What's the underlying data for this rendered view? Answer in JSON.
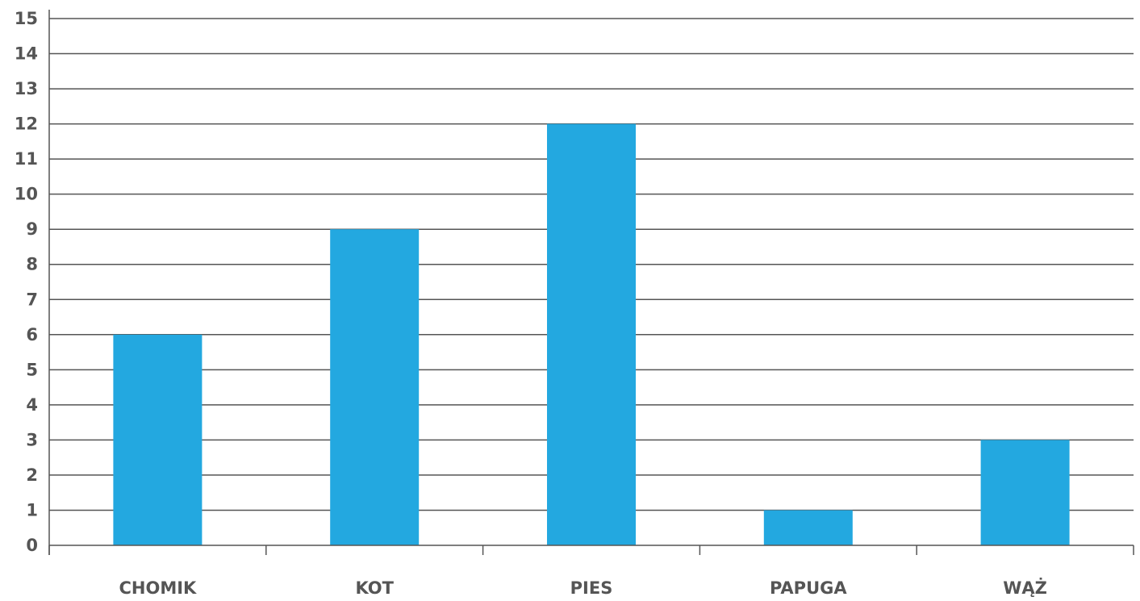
{
  "chart_data": {
    "type": "bar",
    "title": "",
    "xlabel": "",
    "ylabel": "",
    "categories": [
      "CHOMIK",
      "KOT",
      "PIES",
      "PAPUGA",
      "WĄŻ"
    ],
    "values": [
      6,
      9,
      12,
      1,
      3
    ],
    "ylim": [
      0,
      15
    ],
    "yticks": [
      "0",
      "1",
      "2",
      "3",
      "4",
      "5",
      "6",
      "7",
      "8",
      "9",
      "10",
      "11",
      "12",
      "13",
      "14",
      "15"
    ],
    "grid": true,
    "legend": "none",
    "colors": {
      "bar": "#23A8E0",
      "grid": "#555555",
      "axis": "#555555",
      "text": "#555555"
    }
  }
}
